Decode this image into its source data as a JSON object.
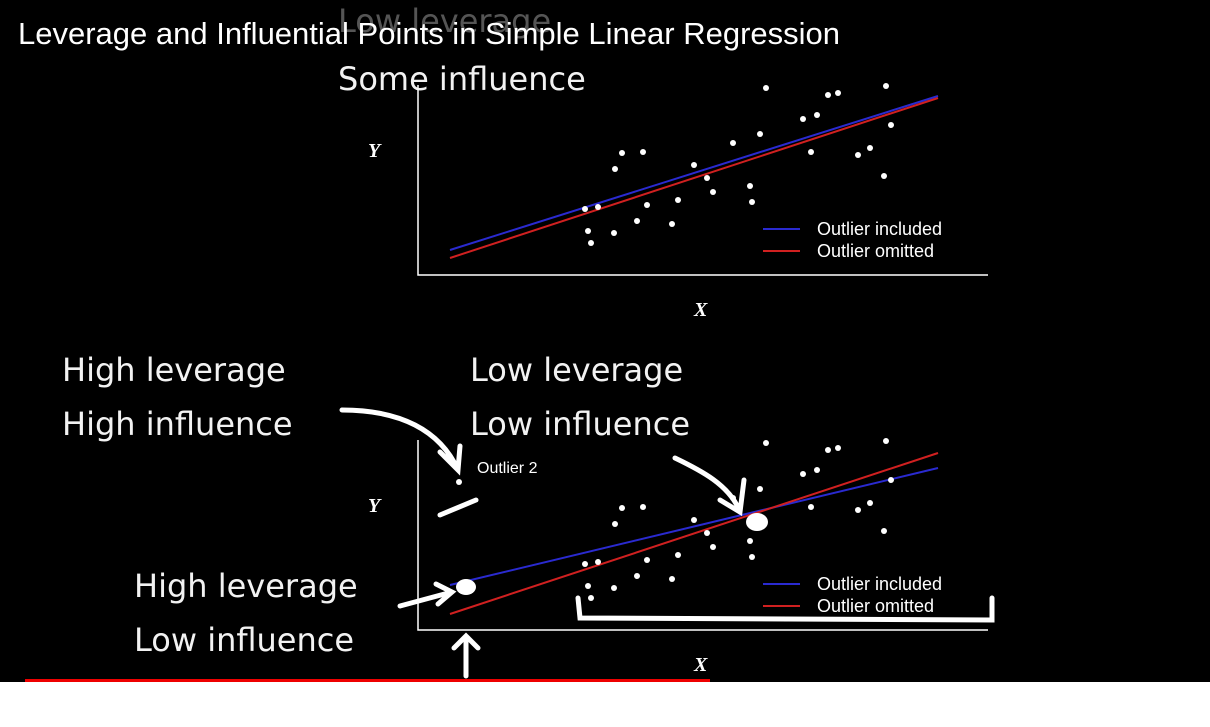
{
  "title": "Leverage and Influential Points in Simple Linear Regression",
  "top_annotation": [
    "Low leverage",
    "Some influence"
  ],
  "plots": [
    {
      "y_label": "Y",
      "x_label": "X",
      "legend": [
        "Outlier included",
        "Outlier omitted"
      ]
    },
    {
      "y_label": "Y",
      "x_label": "X",
      "legend": [
        "Outlier included",
        "Outlier omitted"
      ],
      "point_label": "Outlier 2"
    }
  ],
  "annotations": {
    "left_top": [
      "High leverage",
      "High influence"
    ],
    "middle": [
      "Low leverage",
      "Low influence"
    ],
    "left_bottom": [
      "High leverage",
      "Low influence"
    ]
  }
}
